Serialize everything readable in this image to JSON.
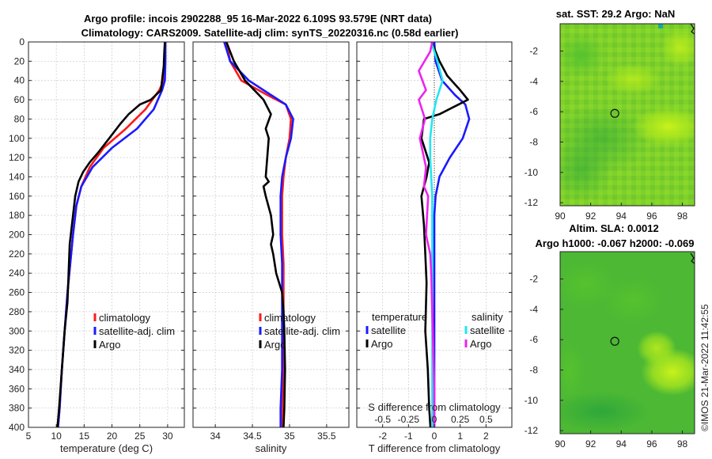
{
  "title_line1": "Argo profile: incois 2902288_95 16-Mar-2022 6.109S 93.579E (NRT data)",
  "title_line2": "Climatology: CARS2009. Satellite-adj clim: synTS_20220316.nc (0.58d earlier)",
  "side_label": "©IMOS 21-Mar-2022 11:42:55",
  "colors": {
    "climatology": "#ff1a1a",
    "satellite": "#1a1aff",
    "argo": "#000000",
    "sal_sat": "#22e5f0",
    "sal_argo": "#ee22ee"
  },
  "chart_data": [
    {
      "id": "temp",
      "type": "line",
      "xlabel": "temperature (deg C)",
      "ylabel": "",
      "xlim": [
        5,
        33
      ],
      "ylim": [
        0,
        400
      ],
      "xticks": [
        5,
        10,
        15,
        20,
        25,
        30
      ],
      "yticks": [
        0,
        20,
        40,
        60,
        80,
        100,
        120,
        140,
        160,
        180,
        200,
        220,
        240,
        260,
        280,
        300,
        320,
        340,
        360,
        380,
        400
      ],
      "legend": [
        "climatology",
        "satellite-adj. clim",
        "Argo"
      ],
      "series": [
        {
          "name": "climatology",
          "color": "#ff1a1a",
          "x": [
            29.6,
            29.4,
            29.3,
            28.5,
            26,
            22.5,
            18.5,
            16,
            14.5,
            13.6,
            13,
            12.5,
            12,
            11.5,
            11,
            10.6,
            10.3
          ],
          "y": [
            0,
            20,
            40,
            50,
            70,
            90,
            110,
            130,
            150,
            170,
            200,
            230,
            260,
            300,
            340,
            380,
            400
          ]
        },
        {
          "name": "satellite-adj. clim",
          "color": "#1a1aff",
          "x": [
            29.6,
            29.6,
            29.5,
            29,
            27.5,
            24.5,
            20,
            16.5,
            14.5,
            13.6,
            13,
            12.5,
            12,
            11.5,
            11,
            10.6,
            10.3
          ],
          "y": [
            0,
            20,
            40,
            50,
            70,
            90,
            110,
            130,
            150,
            170,
            200,
            230,
            260,
            300,
            340,
            380,
            400
          ]
        },
        {
          "name": "Argo",
          "color": "#000000",
          "x": [
            29.5,
            29.4,
            29.3,
            28.8,
            27,
            25,
            23,
            21.5,
            19.5,
            17.5,
            16,
            14.8,
            14,
            13.4,
            13,
            12.4,
            12.2,
            12,
            11.5,
            11,
            10.5,
            10.2
          ],
          "y": [
            0,
            10,
            25,
            50,
            60,
            65,
            75,
            85,
            100,
            115,
            125,
            135,
            145,
            160,
            180,
            210,
            240,
            270,
            300,
            340,
            380,
            400
          ]
        }
      ]
    },
    {
      "id": "sal",
      "type": "line",
      "xlabel": "salinity",
      "ylabel": "",
      "xlim": [
        33.7,
        35.8
      ],
      "ylim": [
        0,
        400
      ],
      "xticks": [
        34,
        34.5,
        35,
        35.5
      ],
      "xticklabels": [
        "34",
        "34.5",
        "35",
        "35.5"
      ],
      "legend": [
        "climatology",
        "satellite-adj. clim",
        "Argo"
      ],
      "series": [
        {
          "name": "climatology",
          "color": "#ff1a1a",
          "x": [
            34.15,
            34.2,
            34.35,
            34.7,
            34.95,
            35.02,
            35,
            34.95,
            34.92,
            34.9,
            34.9,
            34.9,
            34.92,
            34.92,
            34.92,
            34.92,
            34.9,
            34.9
          ],
          "y": [
            0,
            20,
            40,
            55,
            65,
            80,
            100,
            120,
            140,
            160,
            180,
            200,
            230,
            260,
            300,
            340,
            380,
            400
          ]
        },
        {
          "name": "satellite-adj. clim",
          "color": "#1a1aff",
          "x": [
            34.12,
            34.2,
            34.45,
            34.75,
            34.95,
            35.05,
            35.02,
            34.95,
            34.9,
            34.88,
            34.88,
            34.88,
            34.9,
            34.9,
            34.9,
            34.9,
            34.88,
            34.88
          ],
          "y": [
            0,
            20,
            40,
            55,
            65,
            80,
            100,
            120,
            140,
            160,
            180,
            200,
            230,
            260,
            300,
            340,
            380,
            400
          ]
        },
        {
          "name": "Argo",
          "color": "#000000",
          "x": [
            34.15,
            34.2,
            34.25,
            34.4,
            34.65,
            34.75,
            34.68,
            34.72,
            34.7,
            34.68,
            34.72,
            34.65,
            34.68,
            34.75,
            34.78,
            34.75,
            34.78,
            34.8,
            34.82,
            34.9,
            34.92,
            34.93,
            34.94,
            34.93,
            34.92
          ],
          "y": [
            0,
            10,
            20,
            40,
            60,
            75,
            90,
            100,
            120,
            140,
            145,
            150,
            160,
            180,
            200,
            210,
            220,
            230,
            240,
            260,
            280,
            300,
            340,
            380,
            400
          ]
        }
      ]
    },
    {
      "id": "diff",
      "type": "line",
      "xlabel": "T difference from climatology",
      "top_label": "S difference from climatology",
      "xlim": [
        -3,
        3
      ],
      "ylim": [
        0,
        400
      ],
      "xticks": [
        -2,
        -1,
        0,
        1,
        2
      ],
      "xticklabels": [
        "-2",
        "-1",
        "0",
        "1",
        "2"
      ],
      "top_xticks": [
        -0.5,
        -0.25,
        0,
        0.25,
        0.5
      ],
      "top_xticklabels": [
        "-0.5",
        "-0.25",
        "0",
        "0.25",
        "0.5"
      ],
      "legend_left_title": "temperature",
      "legend_right_title": "salinity",
      "legend_left": [
        "satellite",
        "Argo"
      ],
      "legend_right": [
        "satellite",
        "Argo"
      ],
      "series": [
        {
          "name": "T satellite",
          "color": "#1a1aff",
          "x": [
            0,
            0.05,
            0.3,
            0.8,
            1.2,
            1.35,
            1.1,
            0.6,
            0.2,
            0.05,
            0,
            0,
            0,
            0,
            0,
            0,
            0,
            0
          ],
          "y": [
            0,
            20,
            40,
            55,
            65,
            80,
            100,
            120,
            140,
            160,
            180,
            200,
            230,
            260,
            300,
            340,
            380,
            400
          ]
        },
        {
          "name": "T Argo",
          "color": "#000000",
          "x": [
            -0.1,
            0.2,
            0.5,
            1,
            1.3,
            0.2,
            -0.4,
            -0.5,
            -0.2,
            -0.3,
            -0.5,
            -0.4,
            -0.35,
            -0.3,
            -0.35,
            -0.25,
            -0.2,
            -0.15
          ],
          "y": [
            0,
            20,
            35,
            50,
            60,
            75,
            80,
            100,
            125,
            140,
            160,
            190,
            220,
            250,
            300,
            340,
            380,
            400
          ]
        },
        {
          "name": "S satellite",
          "color": "#22e5f0",
          "xs": [
            -0.03,
            0.03,
            0.08,
            0.02,
            -0.02,
            -0.04,
            -0.04,
            -0.03,
            -0.02,
            -0.02,
            -0.02,
            -0.02,
            -0.02,
            -0.02,
            -0.02,
            -0.02
          ],
          "y": [
            0,
            20,
            40,
            60,
            80,
            100,
            120,
            140,
            160,
            200,
            240,
            260,
            300,
            340,
            380,
            400
          ]
        },
        {
          "name": "S Argo",
          "color": "#ee22ee",
          "xs": [
            -0.02,
            -0.04,
            -0.15,
            -0.08,
            -0.15,
            -0.09,
            -0.14,
            -0.08,
            -0.1,
            -0.06,
            -0.08,
            -0.04,
            -0.03,
            -0.02,
            -0.01,
            0,
            0,
            0
          ],
          "y": [
            0,
            10,
            30,
            50,
            60,
            80,
            100,
            130,
            150,
            160,
            200,
            220,
            240,
            280,
            320,
            360,
            380,
            400
          ]
        }
      ]
    },
    {
      "id": "sst",
      "type": "heatmap",
      "title": "sat. SST: 29.2 Argo: NaN",
      "xlim": [
        89.3,
        98.8
      ],
      "ylim": [
        -12.2,
        -0.2
      ],
      "xticks": [
        90,
        92,
        94,
        96,
        98
      ],
      "yticks": [
        -2,
        -4,
        -6,
        -8,
        -10,
        -12
      ],
      "marker": {
        "lon": 93.579,
        "lat": -6.109
      }
    },
    {
      "id": "sla",
      "type": "heatmap",
      "title": "Altim. SLA: 0.0012",
      "title2": "Argo h1000: -0.067 h2000: -0.069",
      "xlim": [
        89.3,
        98.8
      ],
      "ylim": [
        -12.2,
        -0.2
      ],
      "xticks": [
        90,
        92,
        94,
        96,
        98
      ],
      "yticks": [
        -2,
        -4,
        -6,
        -8,
        -10,
        -12
      ],
      "marker": {
        "lon": 93.579,
        "lat": -6.109
      }
    }
  ]
}
